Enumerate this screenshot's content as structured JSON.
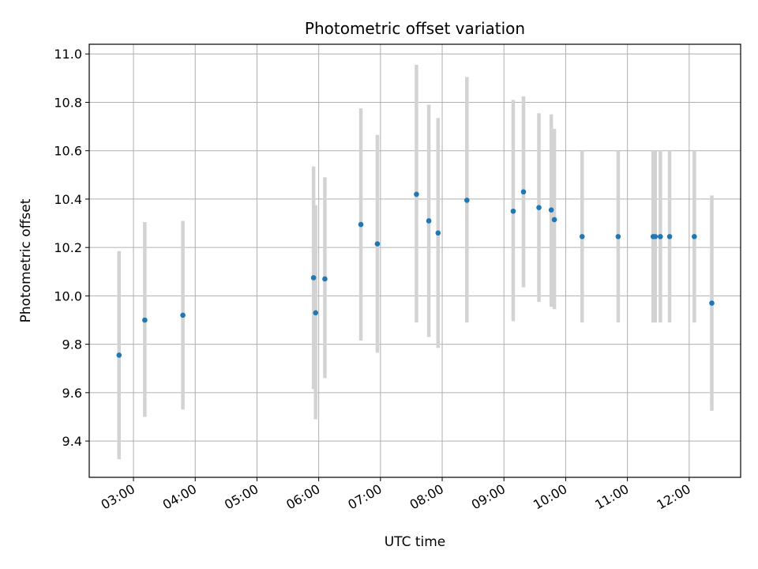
{
  "chart_data": {
    "type": "scatter",
    "title": "Photometric offset variation",
    "xlabel": "UTC time",
    "ylabel": "Photometric offset",
    "x_ticks": [
      "03:00",
      "04:00",
      "05:00",
      "06:00",
      "07:00",
      "08:00",
      "09:00",
      "10:00",
      "11:00",
      "12:00"
    ],
    "y_ticks": [
      "9.4",
      "9.6",
      "9.8",
      "10.0",
      "10.2",
      "10.4",
      "10.6",
      "10.8",
      "11.0"
    ],
    "xlim": [
      "02:17",
      "12:50"
    ],
    "ylim": [
      9.25,
      11.04
    ],
    "grid": true,
    "marker_color": "#1f77b4",
    "errorbar_color": "#d3d3d3",
    "points": [
      {
        "x": "02:46",
        "y": 9.755,
        "low": 9.325,
        "high": 10.185
      },
      {
        "x": "03:11",
        "y": 9.9,
        "low": 9.5,
        "high": 10.305
      },
      {
        "x": "03:48",
        "y": 9.92,
        "low": 9.53,
        "high": 10.31
      },
      {
        "x": "05:55",
        "y": 10.075,
        "low": 9.615,
        "high": 10.535
      },
      {
        "x": "05:57",
        "y": 9.93,
        "low": 9.49,
        "high": 10.375
      },
      {
        "x": "06:06",
        "y": 10.07,
        "low": 9.66,
        "high": 10.49
      },
      {
        "x": "06:41",
        "y": 10.295,
        "low": 9.815,
        "high": 10.775
      },
      {
        "x": "06:57",
        "y": 10.215,
        "low": 9.765,
        "high": 10.665
      },
      {
        "x": "07:35",
        "y": 10.42,
        "low": 9.89,
        "high": 10.955
      },
      {
        "x": "07:47",
        "y": 10.31,
        "low": 9.83,
        "high": 10.79
      },
      {
        "x": "07:56",
        "y": 10.26,
        "low": 9.785,
        "high": 10.735
      },
      {
        "x": "08:24",
        "y": 10.395,
        "low": 9.89,
        "high": 10.905
      },
      {
        "x": "09:09",
        "y": 10.35,
        "low": 9.895,
        "high": 10.81
      },
      {
        "x": "09:19",
        "y": 10.43,
        "low": 10.035,
        "high": 10.825
      },
      {
        "x": "09:34",
        "y": 10.365,
        "low": 9.975,
        "high": 10.755
      },
      {
        "x": "09:46",
        "y": 10.355,
        "low": 9.955,
        "high": 10.75
      },
      {
        "x": "09:49",
        "y": 10.315,
        "low": 9.945,
        "high": 10.69
      },
      {
        "x": "10:16",
        "y": 10.245,
        "low": 9.89,
        "high": 10.6
      },
      {
        "x": "10:51",
        "y": 10.245,
        "low": 9.89,
        "high": 10.6
      },
      {
        "x": "11:25",
        "y": 10.245,
        "low": 9.89,
        "high": 10.6
      },
      {
        "x": "11:27",
        "y": 10.245,
        "low": 9.89,
        "high": 10.6
      },
      {
        "x": "11:32",
        "y": 10.245,
        "low": 9.89,
        "high": 10.6
      },
      {
        "x": "11:41",
        "y": 10.245,
        "low": 9.89,
        "high": 10.6
      },
      {
        "x": "12:05",
        "y": 10.245,
        "low": 9.89,
        "high": 10.6
      },
      {
        "x": "12:22",
        "y": 9.97,
        "low": 9.525,
        "high": 10.415
      }
    ]
  }
}
